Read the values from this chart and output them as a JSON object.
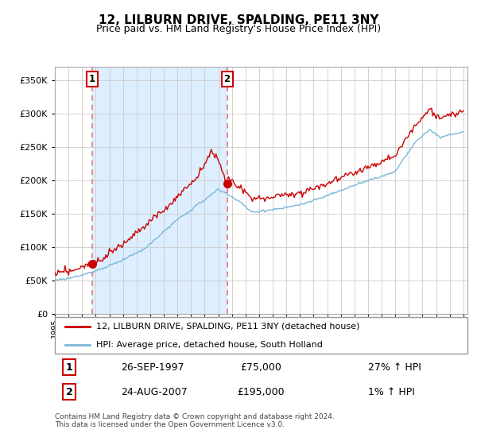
{
  "title": "12, LILBURN DRIVE, SPALDING, PE11 3NY",
  "subtitle": "Price paid vs. HM Land Registry's House Price Index (HPI)",
  "legend_line1": "12, LILBURN DRIVE, SPALDING, PE11 3NY (detached house)",
  "legend_line2": "HPI: Average price, detached house, South Holland",
  "sale1_label": "1",
  "sale1_date": "26-SEP-1997",
  "sale1_price": "£75,000",
  "sale1_hpi": "27% ↑ HPI",
  "sale2_label": "2",
  "sale2_date": "24-AUG-2007",
  "sale2_price": "£195,000",
  "sale2_hpi": "1% ↑ HPI",
  "footer": "Contains HM Land Registry data © Crown copyright and database right 2024.\nThis data is licensed under the Open Government Licence v3.0.",
  "hpi_color": "#7ab8d9",
  "price_color": "#cc0000",
  "sale_dot_color": "#cc0000",
  "vline_color": "#e87878",
  "shade_color": "#ddeeff",
  "ylim": [
    0,
    370000
  ],
  "yticks": [
    0,
    50000,
    100000,
    150000,
    200000,
    250000,
    300000,
    350000
  ],
  "sale1_x": 1997.74,
  "sale1_y": 75000,
  "sale2_x": 2007.65,
  "sale2_y": 195000,
  "xmin": 1995,
  "xmax": 2025.3
}
